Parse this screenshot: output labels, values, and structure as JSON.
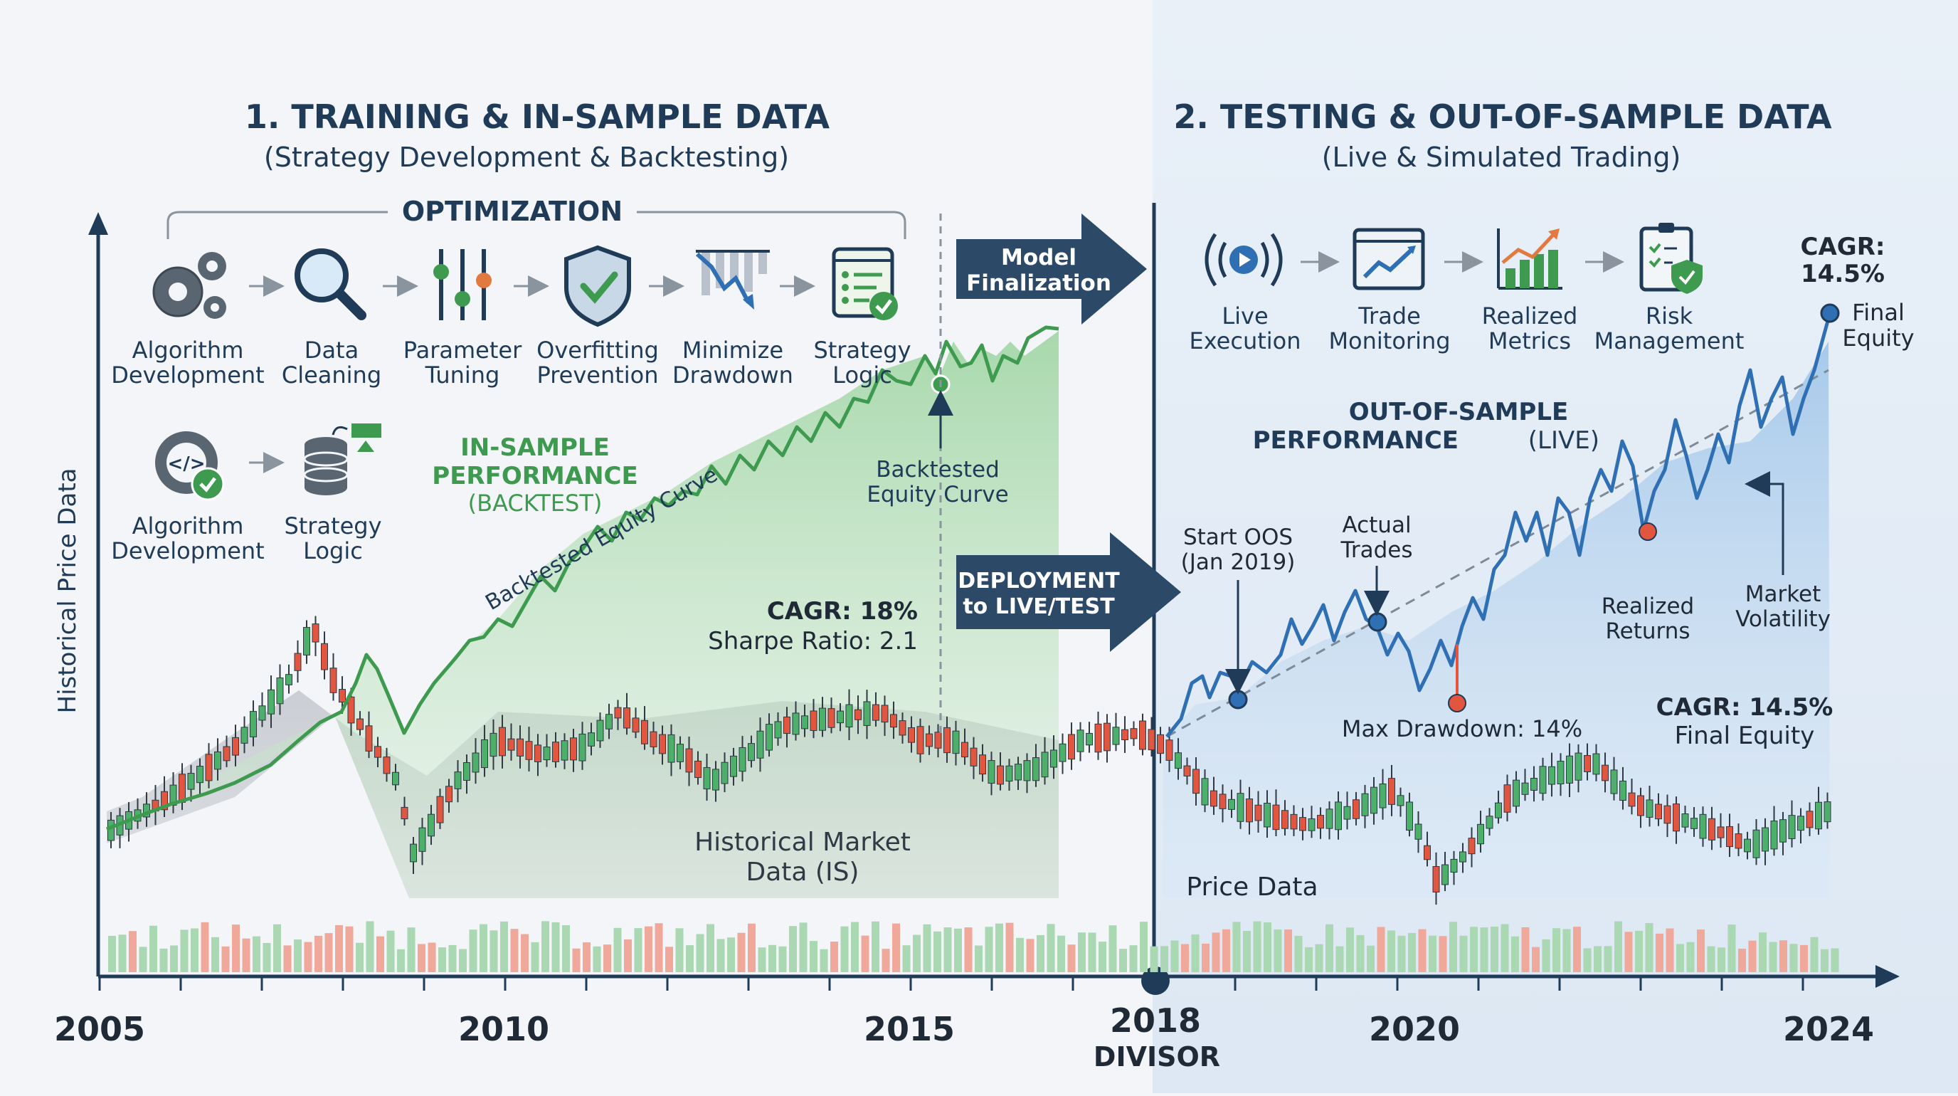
{
  "left_section": {
    "title": "1. TRAINING & IN-SAMPLE DATA",
    "subtitle": "(Strategy Development & Backtesting)",
    "optimization_label": "OPTIMIZATION",
    "steps": [
      {
        "icon": "gears-icon",
        "line1": "Algorithm",
        "line2": "Development"
      },
      {
        "icon": "magnifier-icon",
        "line1": "Data",
        "line2": "Cleaning"
      },
      {
        "icon": "sliders-icon",
        "line1": "Parameter",
        "line2": "Tuning"
      },
      {
        "icon": "shield-check-icon",
        "line1": "Overfitting",
        "line2": "Prevention"
      },
      {
        "icon": "drawdown-chart-icon",
        "line1": "Minimize",
        "line2": "Drawdown"
      },
      {
        "icon": "checklist-window-icon",
        "line1": "Strategy",
        "line2": "Logic"
      }
    ],
    "steps_row2": [
      {
        "icon": "code-gear-icon",
        "line1": "Algorithm",
        "line2": "Development"
      },
      {
        "icon": "database-icon",
        "line1": "Strategy",
        "line2": "Logic"
      }
    ],
    "performance_label": [
      "IN-SAMPLE",
      "PERFORMANCE",
      "(BACKTEST)"
    ],
    "equity_curve_label": "Backtested Equity Curve",
    "equity_callout": [
      "Backtested",
      "Equity Curve"
    ],
    "cagr": "CAGR: 18%",
    "sharpe": "Sharpe Ratio: 2.1",
    "market_data_label": [
      "Historical Market",
      "Data (IS)"
    ]
  },
  "right_section": {
    "title": "2. TESTING & OUT-OF-SAMPLE DATA",
    "subtitle": "(Live & Simulated Trading)",
    "steps": [
      {
        "icon": "live-broadcast-icon",
        "line1": "Live",
        "line2": "Execution"
      },
      {
        "icon": "monitor-chart-icon",
        "line1": "Trade",
        "line2": "Monitoring"
      },
      {
        "icon": "bar-chart-up-icon",
        "line1": "Realized",
        "line2": "Metrics"
      },
      {
        "icon": "clipboard-shield-icon",
        "line1": "Risk",
        "line2": "Management"
      }
    ],
    "cagr_top": [
      "CAGR:",
      "14.5%"
    ],
    "final_equity_top": [
      "Final",
      "Equity"
    ],
    "performance_label": [
      "OUT-OF-SAMPLE",
      "PERFORMANCE",
      "(LIVE)"
    ],
    "start_oos": [
      "Start OOS",
      "(Jan 2019)"
    ],
    "actual_trades": [
      "Actual",
      "Trades"
    ],
    "realized_returns": [
      "Realized",
      "Returns"
    ],
    "market_volatility": [
      "Market",
      "Volatility"
    ],
    "max_drawdown": "Max Drawdown: 14%",
    "cagr_bottom": "CAGR: 14.5%",
    "final_equity_bottom": "Final Equity",
    "price_data_label": "Price Data"
  },
  "arrows": {
    "model_finalization": [
      "Model",
      "Finalization"
    ],
    "deployment": [
      "DEPLOYMENT",
      "to LIVE/TEST"
    ]
  },
  "axis": {
    "y_label": "Historical Price Data",
    "x_ticks": [
      "2005",
      "2010",
      "2015",
      "2018",
      "2020",
      "2024"
    ],
    "divisor_label": "DIVISOR"
  },
  "colors": {
    "navy": "#1f3b57",
    "green": "#3d9a4f",
    "blue": "#2f6fb4",
    "red": "#e2553f",
    "candle_green": "#4caf6a",
    "candle_red": "#e2553f"
  }
}
